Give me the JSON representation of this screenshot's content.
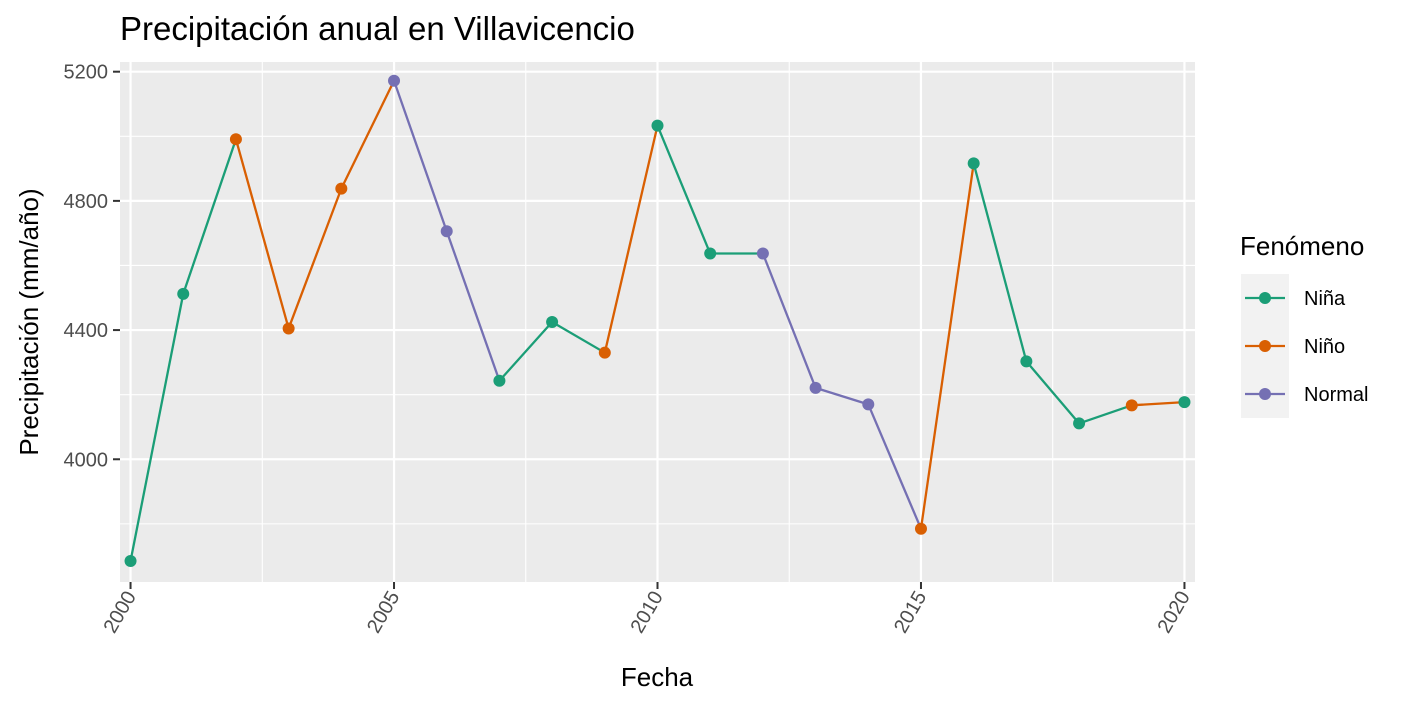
{
  "chart_data": {
    "type": "line",
    "title": "Precipitación anual en Villavicencio",
    "xlabel": "Fecha",
    "ylabel": "Precipitación (mm/año)",
    "xlim": [
      1999.8,
      2020.2
    ],
    "ylim": [
      3620,
      5230
    ],
    "x_ticks": [
      2000,
      2005,
      2010,
      2015,
      2020
    ],
    "x_tick_labels": [
      "2000",
      "2005",
      "2010",
      "2015",
      "2020"
    ],
    "y_ticks": [
      4000,
      4400,
      4800,
      5200
    ],
    "y_tick_labels": [
      "4000",
      "4400",
      "4800",
      "5200"
    ],
    "grid": true,
    "legend": {
      "title": "Fenómeno",
      "position": "right",
      "entries": [
        {
          "name": "Niña",
          "color": "#1b9e77"
        },
        {
          "name": "Niño",
          "color": "#d95f02"
        },
        {
          "name": "Normal",
          "color": "#7570b3"
        }
      ]
    },
    "points": [
      {
        "x": 2000,
        "y": 3685,
        "category": "Niña"
      },
      {
        "x": 2001,
        "y": 4512,
        "category": "Niña"
      },
      {
        "x": 2002,
        "y": 4991,
        "category": "Niño"
      },
      {
        "x": 2003,
        "y": 4405,
        "category": "Niño"
      },
      {
        "x": 2004,
        "y": 4838,
        "category": "Niño"
      },
      {
        "x": 2005,
        "y": 5172,
        "category": "Normal"
      },
      {
        "x": 2006,
        "y": 4706,
        "category": "Normal"
      },
      {
        "x": 2007,
        "y": 4243,
        "category": "Niña"
      },
      {
        "x": 2008,
        "y": 4425,
        "category": "Niña"
      },
      {
        "x": 2009,
        "y": 4330,
        "category": "Niño"
      },
      {
        "x": 2010,
        "y": 5033,
        "category": "Niña"
      },
      {
        "x": 2011,
        "y": 4637,
        "category": "Niña"
      },
      {
        "x": 2012,
        "y": 4637,
        "category": "Normal"
      },
      {
        "x": 2013,
        "y": 4221,
        "category": "Normal"
      },
      {
        "x": 2014,
        "y": 4170,
        "category": "Normal"
      },
      {
        "x": 2015,
        "y": 3785,
        "category": "Niño"
      },
      {
        "x": 2016,
        "y": 4916,
        "category": "Niña"
      },
      {
        "x": 2017,
        "y": 4303,
        "category": "Niña"
      },
      {
        "x": 2018,
        "y": 4111,
        "category": "Niña"
      },
      {
        "x": 2019,
        "y": 4167,
        "category": "Niño"
      },
      {
        "x": 2020,
        "y": 4177,
        "category": "Niña"
      }
    ]
  }
}
